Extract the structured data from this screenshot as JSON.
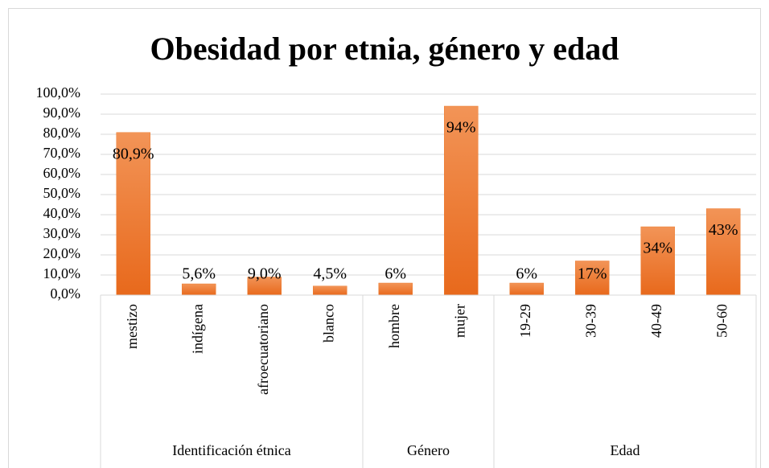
{
  "chart_data": {
    "type": "bar",
    "title": "Obesidad por etnia, género y edad",
    "categories": [
      "mestizo",
      "indígena",
      "afroecuatoriano",
      "blanco",
      "hombre",
      "mujer",
      "19-29",
      "30-39",
      "40-49",
      "50-60"
    ],
    "values": [
      80.9,
      5.6,
      9.0,
      4.5,
      6,
      94,
      6,
      17,
      34,
      43
    ],
    "value_labels": [
      "80,9%",
      "5,6%",
      "9,0%",
      "4,5%",
      "6%",
      "94%",
      "6%",
      "17%",
      "34%",
      "43%"
    ],
    "groups": [
      {
        "label": "Identificación étnica",
        "size": 4
      },
      {
        "label": "Género",
        "size": 2
      },
      {
        "label": "Edad",
        "size": 4
      }
    ],
    "color": "#ed7d31",
    "ylim": [
      0,
      100
    ],
    "yticks": [
      {
        "value": 0,
        "label": "0,0%"
      },
      {
        "value": 10,
        "label": "10,0%"
      },
      {
        "value": 20,
        "label": "20,0%"
      },
      {
        "value": 30,
        "label": "30,0%"
      },
      {
        "value": 40,
        "label": "40,0%"
      },
      {
        "value": 50,
        "label": "50,0%"
      },
      {
        "value": 60,
        "label": "60,0%"
      },
      {
        "value": 70,
        "label": "70,0%"
      },
      {
        "value": 80,
        "label": "80,0%"
      },
      {
        "value": 90,
        "label": "90,0%"
      },
      {
        "value": 100,
        "label": "100,0%"
      }
    ],
    "grid": true
  }
}
